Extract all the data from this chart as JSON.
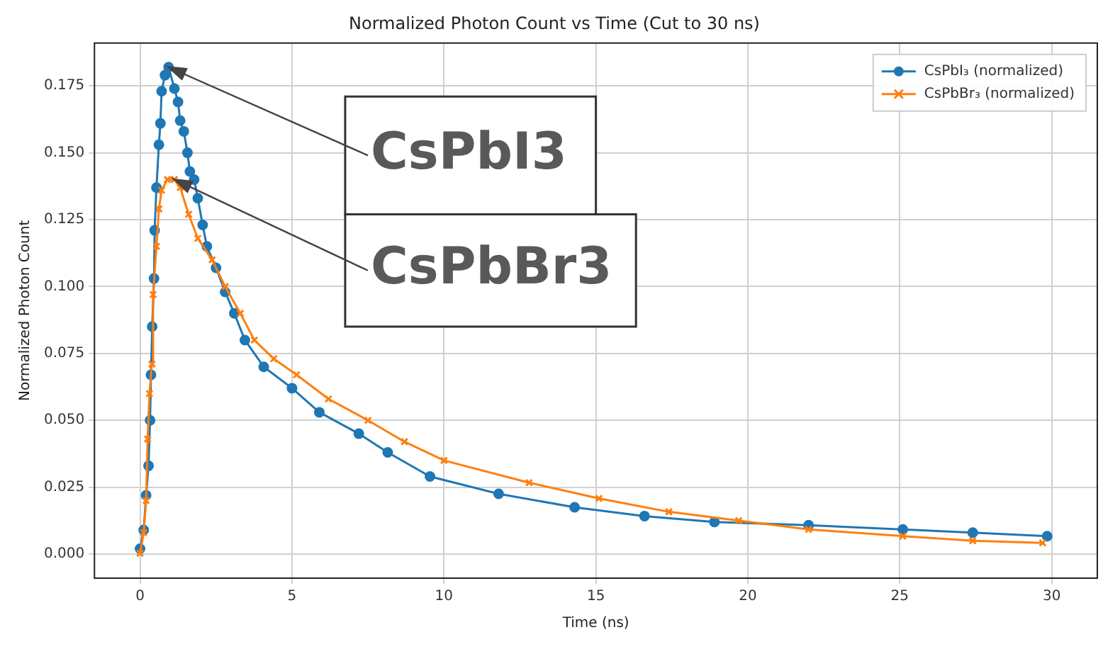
{
  "chart_data": {
    "type": "line",
    "title": "Normalized Photon Count vs Time (Cut to 30 ns)",
    "xlabel": "Time (ns)",
    "ylabel": "Normalized Photon Count",
    "xlim": [
      -1.5,
      31.5
    ],
    "xticks": [
      0,
      5,
      10,
      15,
      20,
      25,
      30
    ],
    "ylim": [
      -0.009,
      0.191
    ],
    "yticks": [
      {
        "value": 0,
        "label": "0.000"
      },
      {
        "value": 0.025,
        "label": "0.025"
      },
      {
        "value": 0.05,
        "label": "0.050"
      },
      {
        "value": 0.075,
        "label": "0.075"
      },
      {
        "value": 0.1,
        "label": "0.100"
      },
      {
        "value": 0.125,
        "label": "0.125"
      },
      {
        "value": 0.15,
        "label": "0.150"
      },
      {
        "value": 0.175,
        "label": "0.175"
      }
    ],
    "grid": true,
    "legend": "top right",
    "annotations": [
      {
        "text": "CsPbI3",
        "x": 0.94,
        "y": 0.182
      },
      {
        "text": "CsPbBr3",
        "x": 1.13,
        "y": 0.14
      }
    ],
    "series": [
      {
        "name": "CsPbI₃ (normalized)",
        "color": "#1f77b4",
        "marker": "circle",
        "x": [
          0,
          0.12,
          0.2,
          0.28,
          0.33,
          0.36,
          0.4,
          0.46,
          0.48,
          0.54,
          0.62,
          0.67,
          0.71,
          0.82,
          0.94,
          1.13,
          1.25,
          1.32,
          1.44,
          1.56,
          1.64,
          1.78,
          1.9,
          2.06,
          2.2,
          2.5,
          2.8,
          3.1,
          3.45,
          4.07,
          5,
          5.9,
          7.2,
          8.15,
          9.54,
          11.8,
          14.3,
          16.6,
          18.9,
          22,
          25.1,
          27.4,
          29.85
        ],
        "values": [
          0.002,
          0.009,
          0.022,
          0.033,
          0.05,
          0.067,
          0.085,
          0.103,
          0.121,
          0.137,
          0.153,
          0.161,
          0.173,
          0.179,
          0.182,
          0.174,
          0.169,
          0.162,
          0.158,
          0.15,
          0.143,
          0.14,
          0.133,
          0.123,
          0.115,
          0.107,
          0.098,
          0.09,
          0.08,
          0.07,
          0.062,
          0.053,
          0.045,
          0.038,
          0.029,
          0.0225,
          0.0175,
          0.0142,
          0.012,
          0.0108,
          0.0092,
          0.008,
          0.0067
        ]
      },
      {
        "name": "CsPbBr₃ (normalized)",
        "color": "#ff7f0e",
        "marker": "cross",
        "x": [
          0,
          0.12,
          0.2,
          0.25,
          0.31,
          0.39,
          0.43,
          0.54,
          0.62,
          0.71,
          0.9,
          1.13,
          1.32,
          1.6,
          1.9,
          2.37,
          2.8,
          3.3,
          3.76,
          4.4,
          5.15,
          6.2,
          7.5,
          8.7,
          10,
          12.8,
          15.1,
          17.4,
          19.7,
          22,
          25.1,
          27.4,
          29.7
        ],
        "values": [
          0.0003,
          0.008,
          0.02,
          0.043,
          0.06,
          0.071,
          0.097,
          0.115,
          0.129,
          0.136,
          0.14,
          0.14,
          0.137,
          0.127,
          0.118,
          0.11,
          0.1,
          0.09,
          0.08,
          0.073,
          0.067,
          0.058,
          0.05,
          0.042,
          0.035,
          0.0267,
          0.0208,
          0.0158,
          0.0125,
          0.0092,
          0.0067,
          0.005,
          0.0042
        ]
      }
    ]
  }
}
